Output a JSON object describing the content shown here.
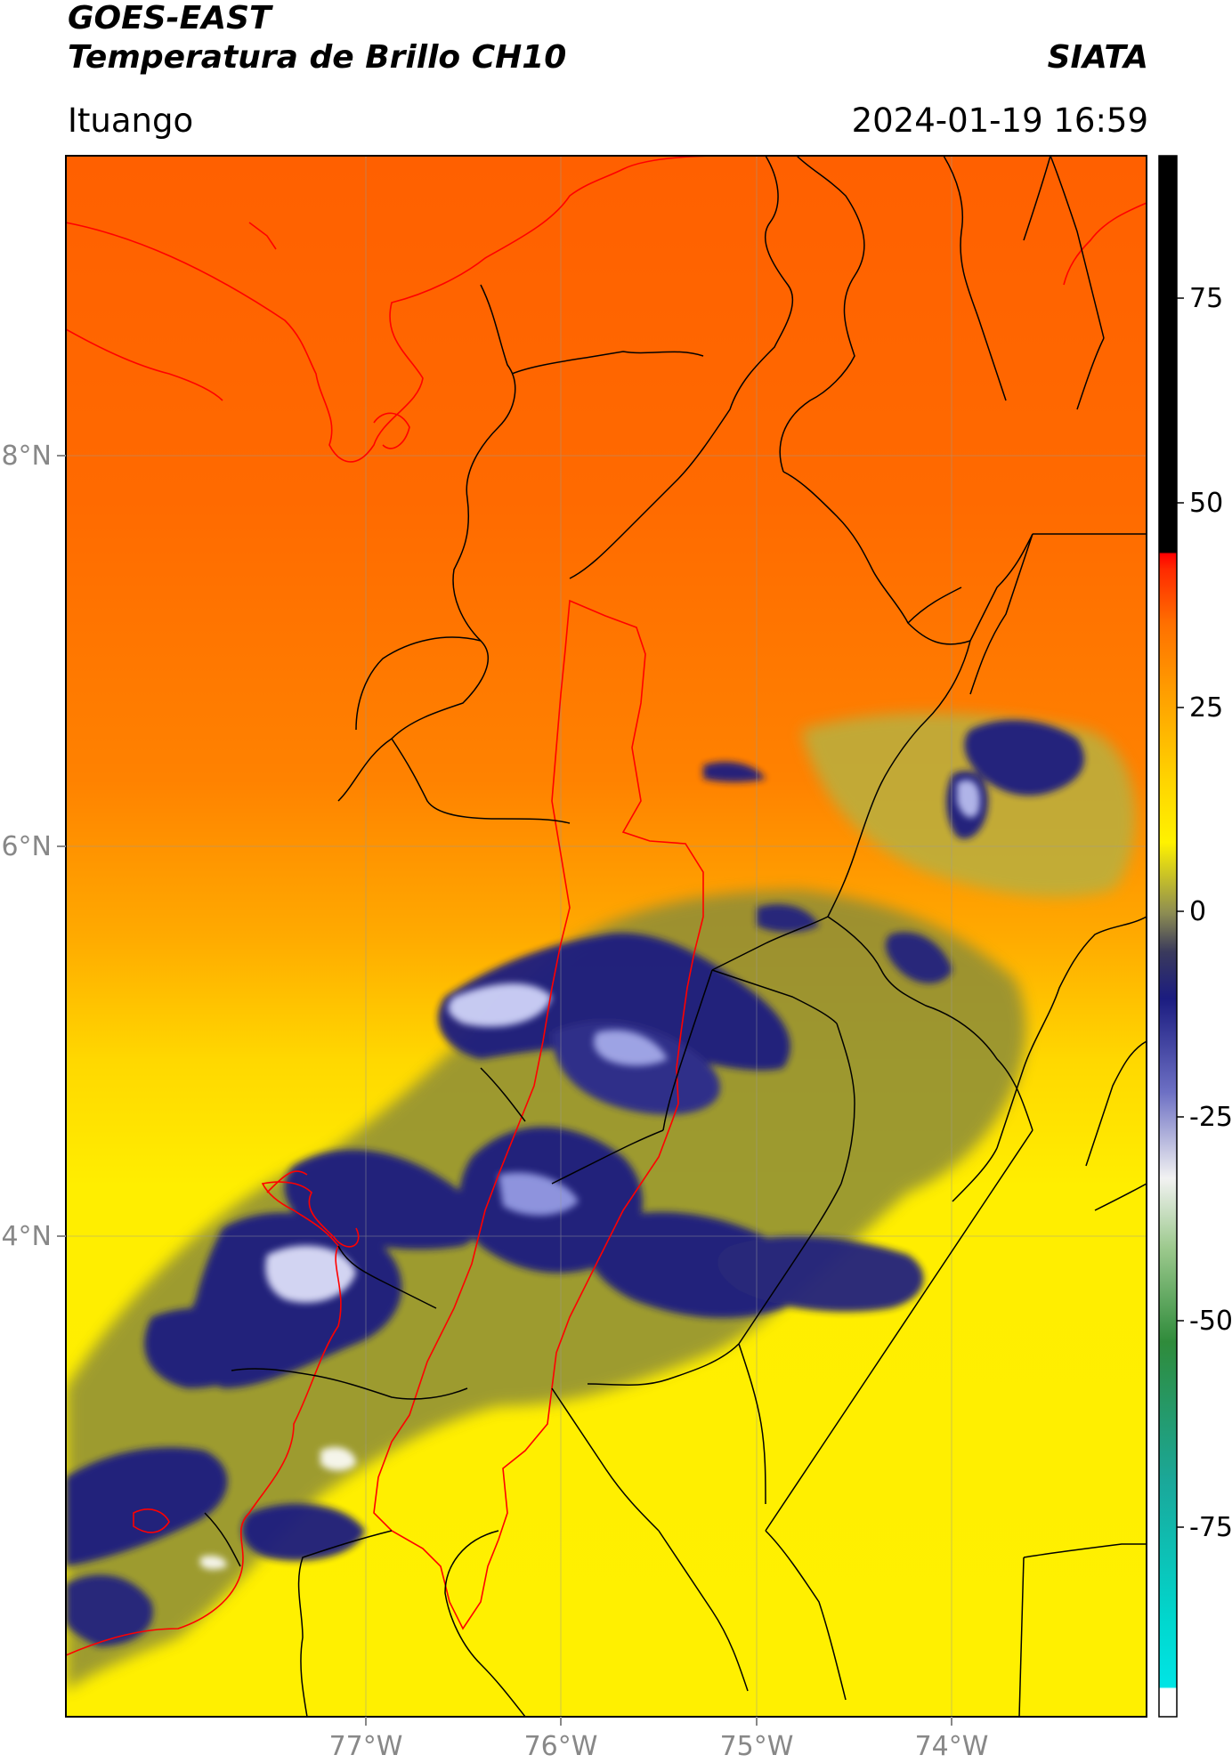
{
  "header": {
    "satellite": "GOES-EAST",
    "product": "Temperatura de Brillo CH10",
    "agency": "SIATA",
    "region": "Ituango",
    "datetime": "2024-01-19 16:59"
  },
  "map": {
    "lat_labels": [
      "8°N",
      "6°N",
      "4°N"
    ],
    "lon_labels": [
      "77°W",
      "76°W",
      "75°W",
      "74°W"
    ],
    "lat_range": [
      1.95,
      9.55
    ],
    "lon_range": [
      -78.55,
      -72.95
    ]
  },
  "colorbar": {
    "ticks": [
      "75",
      "50",
      "25",
      "0",
      "-25",
      "-50",
      "-75"
    ],
    "range": [
      -100,
      100
    ],
    "units": ""
  },
  "colors": {
    "warm": "#ff6600",
    "mid": "#ffa500",
    "cool": "#fff200",
    "cold_cloud": "#1b1c80",
    "coldest": "#eef0ff",
    "border_black": "#000000",
    "border_red": "#ff0000"
  }
}
